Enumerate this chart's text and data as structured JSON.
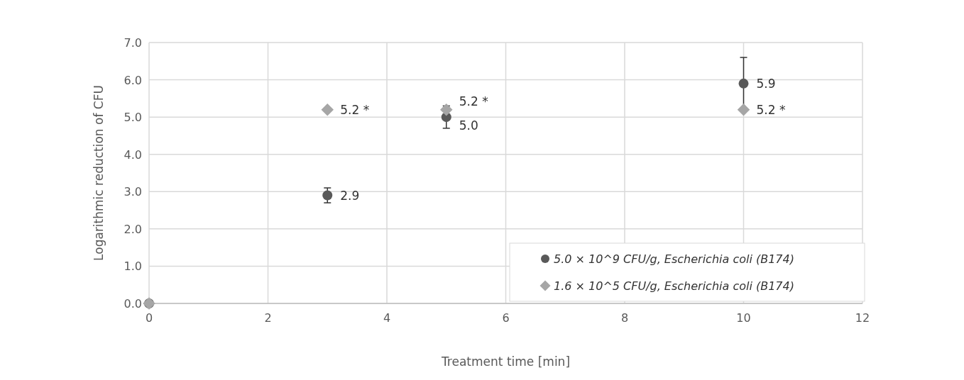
{
  "chart_data": {
    "type": "scatter",
    "xlabel": "Treatment time [min]",
    "ylabel": "Logarithmic reduction of CFU",
    "xlim": [
      0,
      12
    ],
    "xticks": [
      0,
      2,
      4,
      6,
      8,
      10,
      12
    ],
    "ylim": [
      0,
      7
    ],
    "yticks": [
      {
        "value": 0,
        "label": "0.0"
      },
      {
        "value": 1,
        "label": "1.0"
      },
      {
        "value": 2,
        "label": "2.0"
      },
      {
        "value": 3,
        "label": "3.0"
      },
      {
        "value": 4,
        "label": "4.0"
      },
      {
        "value": 5,
        "label": "5.0"
      },
      {
        "value": 6,
        "label": "6.0"
      },
      {
        "value": 7,
        "label": "7.0"
      }
    ],
    "grid": true,
    "legend": "bottom right",
    "series": [
      {
        "name": "5.0 × 10^9 CFU/g, Escherichia coli (B174)",
        "color": "#595959",
        "marker": "circle",
        "x": [
          0,
          3,
          5,
          10
        ],
        "values": [
          0,
          2.9,
          5.0,
          5.9
        ],
        "errors": [
          null,
          0.2,
          0.3,
          0.7
        ],
        "value_labels": [
          null,
          "2.9",
          "5.0",
          "5.9"
        ]
      },
      {
        "name": "1.6 × 10^5 CFU/g, Escherichia coli (B174)",
        "color": "#a6a6a6",
        "marker": "diamond",
        "x": [
          0,
          3,
          5,
          10
        ],
        "values": [
          0,
          5.2,
          5.2,
          5.2
        ],
        "value_labels": [
          null,
          "5.2 *",
          "5.2 *",
          "5.2 *"
        ]
      }
    ]
  }
}
